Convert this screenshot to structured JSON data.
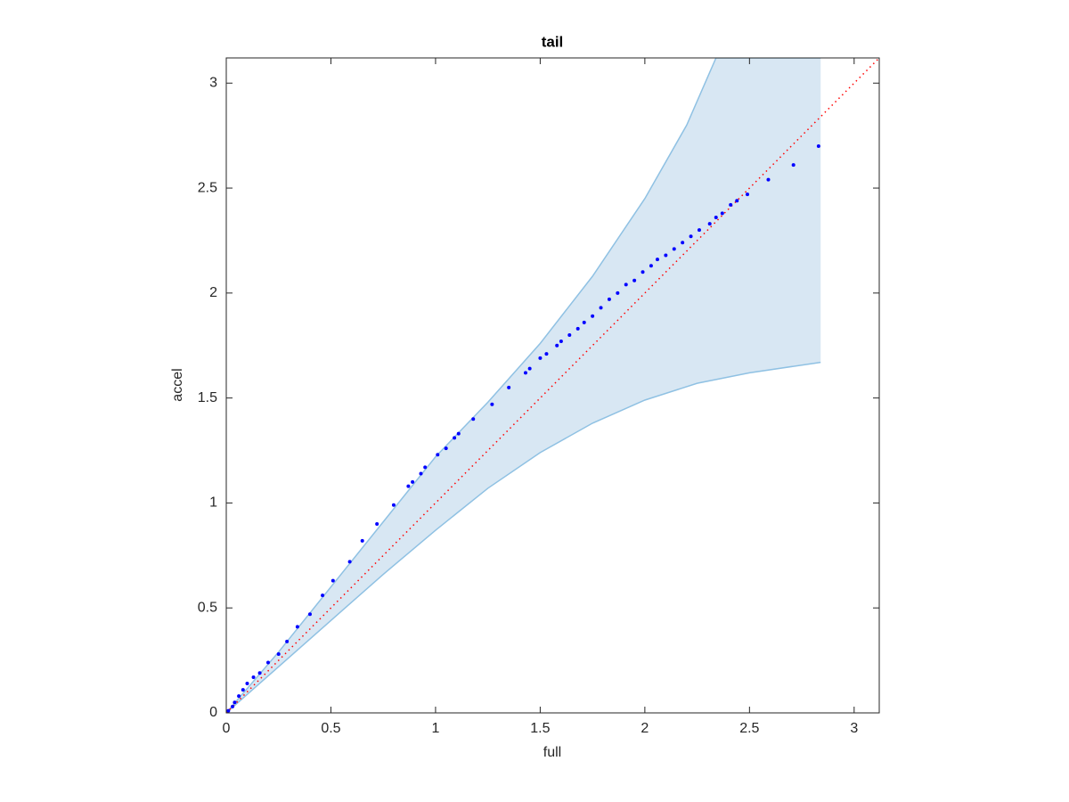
{
  "chart_data": {
    "type": "scatter",
    "title": "tail",
    "x_label": "full",
    "y_label": "accel",
    "xlim": [
      0,
      3.12
    ],
    "ylim": [
      0,
      3.12
    ],
    "xticks": [
      0,
      0.5,
      1,
      1.5,
      2,
      2.5,
      3
    ],
    "yticks": [
      0,
      0.5,
      1,
      1.5,
      2,
      2.5,
      3
    ],
    "band": {
      "color": "#d8e7f3",
      "edge_color": "#8fc1e3",
      "upper_x": [
        0,
        0.25,
        0.5,
        0.75,
        1,
        1.25,
        1.5,
        1.75,
        2,
        2.2,
        2.34,
        2.84
      ],
      "upper": [
        0,
        0.29,
        0.6,
        0.91,
        1.22,
        1.48,
        1.76,
        2.08,
        2.45,
        2.8,
        3.12,
        3.12
      ],
      "lower_x": [
        0,
        0.25,
        0.5,
        0.75,
        1,
        1.25,
        1.5,
        1.75,
        2,
        2.25,
        2.5,
        2.84
      ],
      "lower": [
        0,
        0.22,
        0.44,
        0.66,
        0.87,
        1.07,
        1.24,
        1.38,
        1.49,
        1.57,
        1.62,
        1.67
      ]
    },
    "reference_line": {
      "color": "#ff0000",
      "x": [
        0,
        3.12
      ],
      "values": [
        0,
        3.12
      ]
    },
    "series": [
      {
        "color": "#0000ff",
        "x": [
          0.01,
          0.03,
          0.04,
          0.06,
          0.08,
          0.1,
          0.13,
          0.16,
          0.2,
          0.25,
          0.29,
          0.34,
          0.4,
          0.46,
          0.51,
          0.59,
          0.65,
          0.72,
          0.8,
          0.87,
          0.89,
          0.93,
          0.95,
          1.01,
          1.05,
          1.09,
          1.11,
          1.18,
          1.27,
          1.35,
          1.43,
          1.45,
          1.5,
          1.53,
          1.58,
          1.6,
          1.64,
          1.68,
          1.71,
          1.75,
          1.79,
          1.83,
          1.87,
          1.91,
          1.95,
          1.99,
          2.03,
          2.06,
          2.1,
          2.14,
          2.18,
          2.22,
          2.26,
          2.31,
          2.34,
          2.37,
          2.41,
          2.44,
          2.49,
          2.59,
          2.71,
          2.83
        ],
        "values": [
          0.01,
          0.03,
          0.05,
          0.08,
          0.11,
          0.14,
          0.17,
          0.19,
          0.24,
          0.28,
          0.34,
          0.41,
          0.47,
          0.56,
          0.63,
          0.72,
          0.82,
          0.9,
          0.99,
          1.08,
          1.1,
          1.14,
          1.17,
          1.23,
          1.26,
          1.31,
          1.33,
          1.4,
          1.47,
          1.55,
          1.62,
          1.64,
          1.69,
          1.71,
          1.75,
          1.77,
          1.8,
          1.83,
          1.86,
          1.89,
          1.93,
          1.97,
          2.0,
          2.04,
          2.06,
          2.1,
          2.13,
          2.16,
          2.18,
          2.21,
          2.24,
          2.27,
          2.3,
          2.33,
          2.36,
          2.38,
          2.42,
          2.44,
          2.47,
          2.54,
          2.61,
          2.7
        ]
      }
    ]
  }
}
